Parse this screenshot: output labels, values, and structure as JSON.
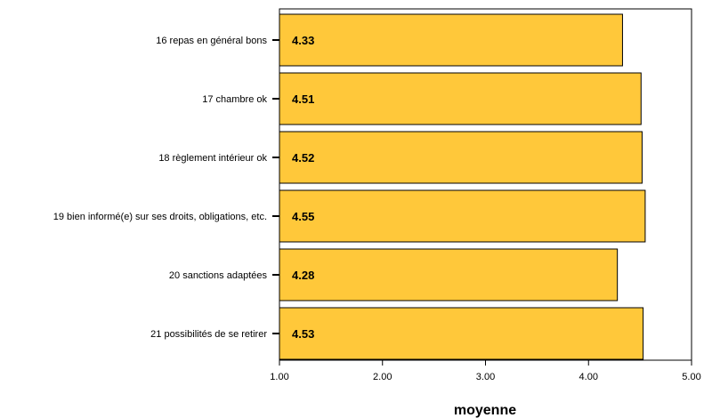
{
  "chart_data": {
    "type": "bar",
    "orientation": "horizontal",
    "categories": [
      "16 repas en général bons",
      "17 chambre ok",
      "18 règlement intérieur ok",
      "19 bien informé(e) sur ses droits, obligations, etc.",
      "20 sanctions adaptées",
      "21 possibilités de se retirer"
    ],
    "values": [
      4.33,
      4.51,
      4.52,
      4.55,
      4.28,
      4.53
    ],
    "value_labels": [
      "4.33",
      "4.51",
      "4.52",
      "4.55",
      "4.28",
      "4.53"
    ],
    "xlabel": "moyenne",
    "ylabel": "",
    "xlim": [
      1.0,
      5.0
    ],
    "x_ticks": [
      1.0,
      2.0,
      3.0,
      4.0,
      5.0
    ],
    "x_tick_labels": [
      "1.00",
      "2.00",
      "3.00",
      "4.00",
      "5.00"
    ],
    "grid": false,
    "colors": {
      "bar_fill": "#FFC83A",
      "bar_stroke": "#000000",
      "frame": "#000000"
    }
  }
}
